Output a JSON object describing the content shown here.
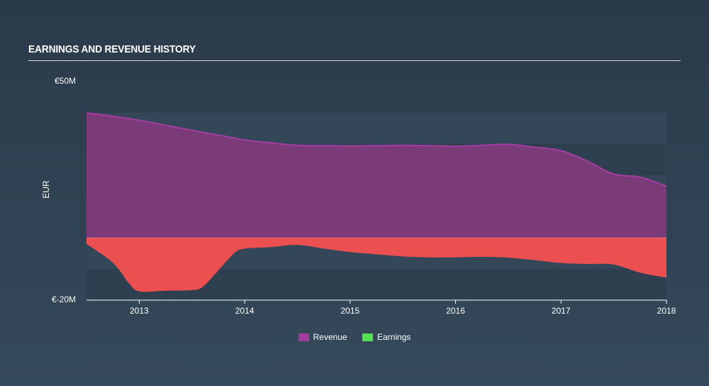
{
  "header": {
    "title": "EARNINGS AND REVENUE HISTORY"
  },
  "chart_data": {
    "type": "area",
    "title": "EARNINGS AND REVENUE HISTORY",
    "ylabel": "EUR",
    "xlabel": "",
    "ylim": [
      -20,
      50
    ],
    "xlim": [
      2012.5,
      2018.0
    ],
    "y_tick_labels": [
      {
        "value": 50,
        "label": "€50M"
      },
      {
        "value": -20,
        "label": "€-20M"
      }
    ],
    "x_ticks": [
      {
        "value": 2013,
        "label": "2013"
      },
      {
        "value": 2014,
        "label": "2014"
      },
      {
        "value": 2015,
        "label": "2015"
      },
      {
        "value": 2016,
        "label": "2016"
      },
      {
        "value": 2017,
        "label": "2017"
      },
      {
        "value": 2018,
        "label": "2018"
      }
    ],
    "series": [
      {
        "name": "Revenue",
        "color": "#a23ea0",
        "fill": "#7b3a78",
        "points": [
          [
            2012.5,
            40.0
          ],
          [
            2012.75,
            38.9
          ],
          [
            2013.0,
            37.6
          ],
          [
            2013.25,
            36.0
          ],
          [
            2013.5,
            34.4
          ],
          [
            2013.75,
            32.9
          ],
          [
            2014.0,
            31.3
          ],
          [
            2014.25,
            30.4
          ],
          [
            2014.5,
            29.6
          ],
          [
            2014.75,
            29.5
          ],
          [
            2015.0,
            29.4
          ],
          [
            2015.25,
            29.5
          ],
          [
            2015.5,
            29.6
          ],
          [
            2015.75,
            29.5
          ],
          [
            2016.0,
            29.3
          ],
          [
            2016.25,
            29.6
          ],
          [
            2016.5,
            29.9
          ],
          [
            2016.75,
            29.0
          ],
          [
            2017.0,
            27.9
          ],
          [
            2017.25,
            24.5
          ],
          [
            2017.5,
            20.4
          ],
          [
            2017.75,
            19.4
          ],
          [
            2018.0,
            16.5
          ]
        ]
      },
      {
        "name": "Earnings",
        "color": "#e35050",
        "fill": "#ec4f50",
        "points": [
          [
            2012.5,
            -2.0
          ],
          [
            2012.75,
            -8.0
          ],
          [
            2012.9,
            -14.5
          ],
          [
            2013.0,
            -17.2
          ],
          [
            2013.25,
            -17.0
          ],
          [
            2013.5,
            -16.8
          ],
          [
            2013.6,
            -15.8
          ],
          [
            2013.75,
            -10.5
          ],
          [
            2013.9,
            -5.0
          ],
          [
            2014.0,
            -3.5
          ],
          [
            2014.25,
            -3.0
          ],
          [
            2014.5,
            -2.3
          ],
          [
            2014.75,
            -3.5
          ],
          [
            2015.0,
            -4.6
          ],
          [
            2015.25,
            -5.3
          ],
          [
            2015.5,
            -6.0
          ],
          [
            2015.75,
            -6.3
          ],
          [
            2016.0,
            -6.3
          ],
          [
            2016.25,
            -6.1
          ],
          [
            2016.5,
            -6.4
          ],
          [
            2016.75,
            -7.2
          ],
          [
            2017.0,
            -8.1
          ],
          [
            2017.25,
            -8.4
          ],
          [
            2017.5,
            -8.6
          ],
          [
            2017.75,
            -11.2
          ],
          [
            2018.0,
            -12.8
          ]
        ]
      }
    ],
    "legend": {
      "position": "bottom-center",
      "items": [
        {
          "label": "Revenue",
          "color": "#a23ea0"
        },
        {
          "label": "Earnings",
          "color": "#51e151"
        }
      ]
    }
  }
}
